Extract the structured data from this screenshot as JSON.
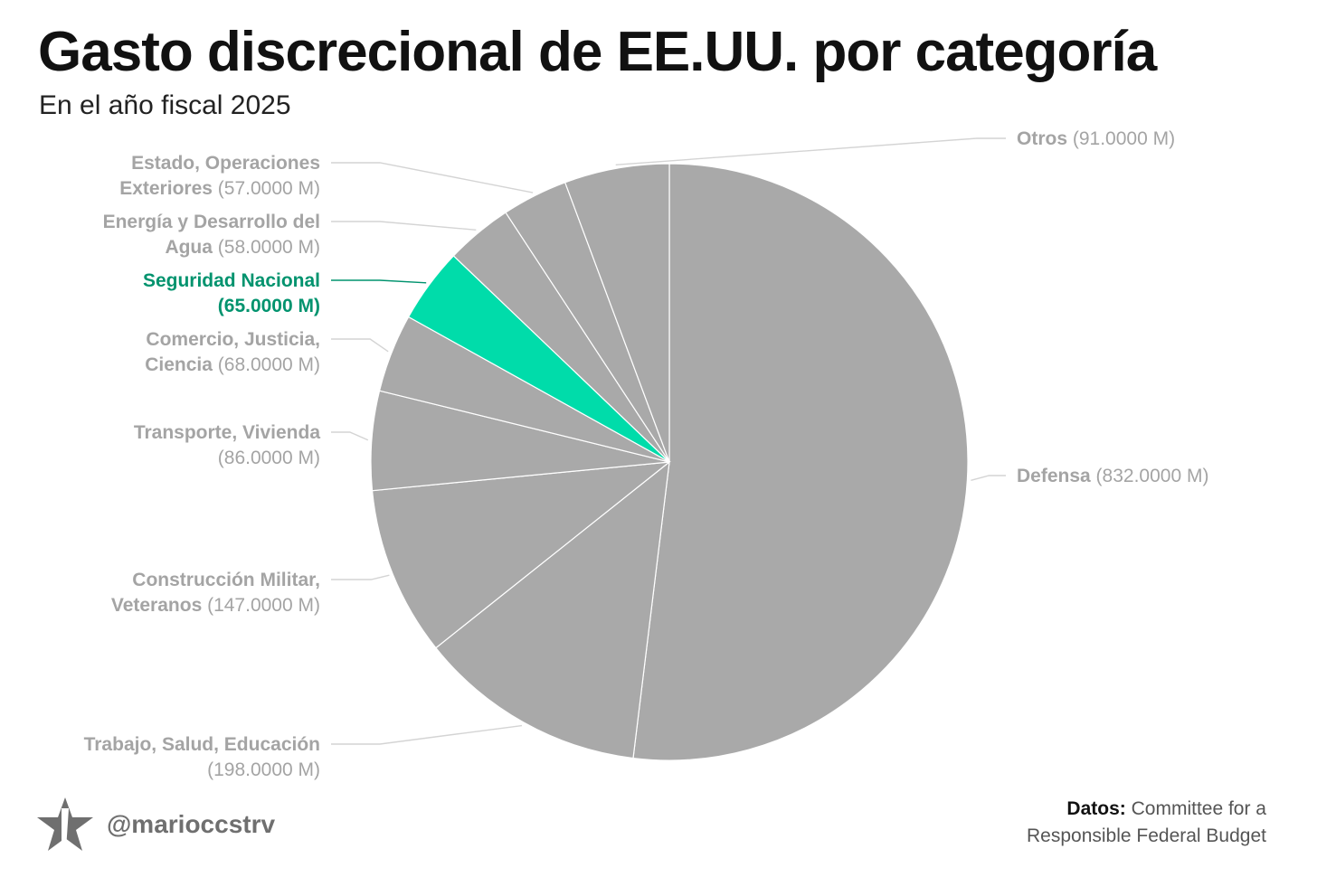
{
  "header": {
    "title": "Gasto discrecional de EE.UU. por categoría",
    "subtitle": "En el año fiscal 2025"
  },
  "chart_data": {
    "type": "pie",
    "title": "Gasto discrecional de EE.UU. por categoría",
    "subtitle": "En el año fiscal 2025",
    "slices": [
      {
        "label_lines": [
          "Defensa"
        ],
        "value_text": "(832.0000 M)",
        "value": 832,
        "highlight": false
      },
      {
        "label_lines": [
          "Trabajo, Salud, Educación"
        ],
        "value_text": "(198.0000 M)",
        "value": 198,
        "highlight": false
      },
      {
        "label_lines": [
          "Construcción Militar,",
          "Veteranos"
        ],
        "value_text": "(147.0000 M)",
        "value": 147,
        "highlight": false
      },
      {
        "label_lines": [
          "Transporte, Vivienda"
        ],
        "value_text": "(86.0000 M)",
        "value": 86,
        "highlight": false
      },
      {
        "label_lines": [
          "Comercio, Justicia,",
          "Ciencia"
        ],
        "value_text": "(68.0000 M)",
        "value": 68,
        "highlight": false
      },
      {
        "label_lines": [
          "Seguridad Nacional"
        ],
        "value_text": "(65.0000 M)",
        "value": 65,
        "highlight": true
      },
      {
        "label_lines": [
          "Energía y Desarrollo del",
          "Agua"
        ],
        "value_text": "(58.0000 M)",
        "value": 58,
        "highlight": false
      },
      {
        "label_lines": [
          "Estado, Operaciones",
          "Exteriores"
        ],
        "value_text": "(57.0000 M)",
        "value": 57,
        "highlight": false
      },
      {
        "label_lines": [
          "Otros"
        ],
        "value_text": "(91.0000 M)",
        "value": 91,
        "highlight": false
      }
    ],
    "colors": {
      "slice": "#a9a9a9",
      "highlight": "#00dcaa",
      "highlight_text": "#00936e",
      "label_text": "#a4a4a4",
      "leader": "#d4d4d4"
    }
  },
  "footer": {
    "handle": "@marioccstrv",
    "source_label": "Datos:",
    "source_line1": "Committee for a",
    "source_line2": "Responsible Federal Budget",
    "logo_icon": "star-icon"
  }
}
